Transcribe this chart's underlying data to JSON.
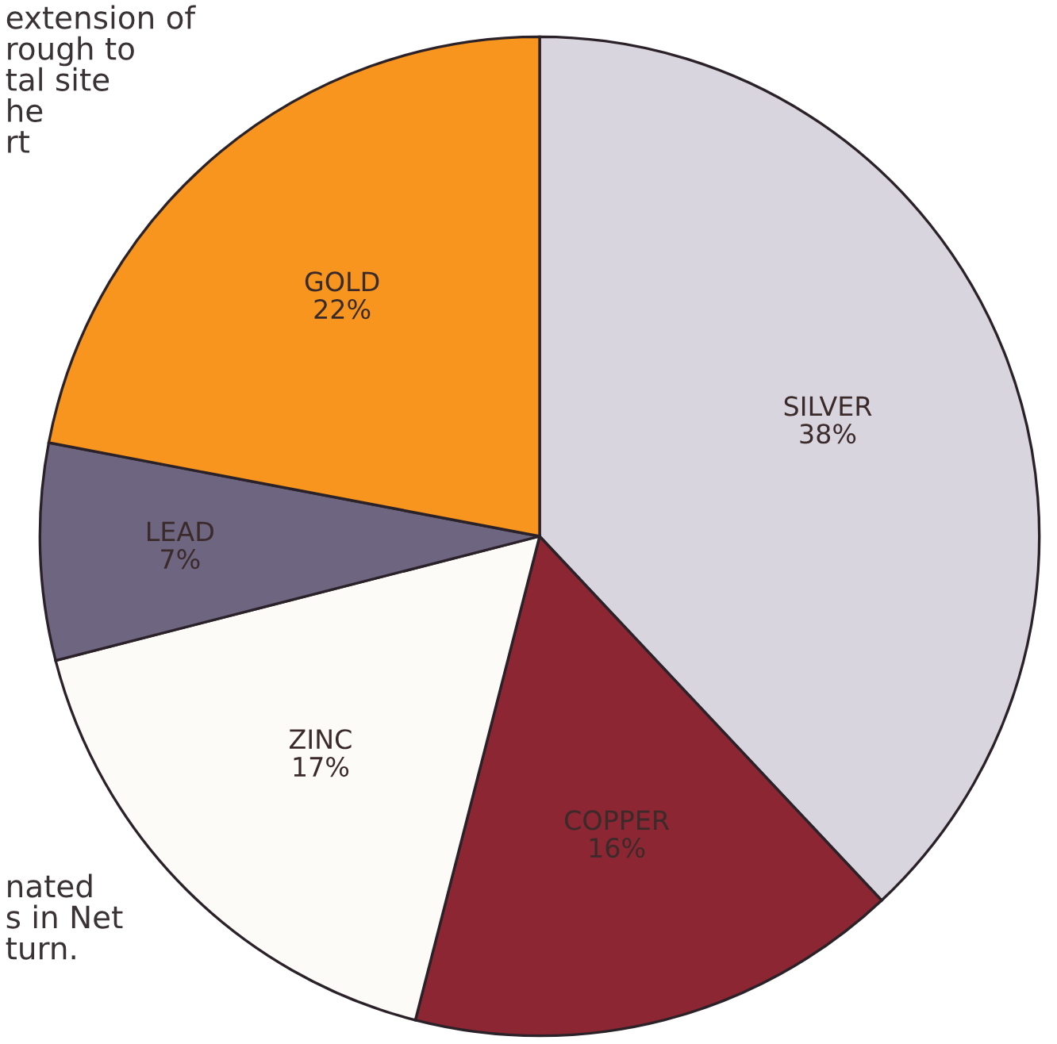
{
  "chart_data": {
    "type": "pie",
    "categories": [
      "SILVER",
      "COPPER",
      "ZINC",
      "LEAD",
      "GOLD"
    ],
    "values": [
      38,
      16,
      17,
      7,
      22
    ],
    "colors": [
      "#d9d5de",
      "#8c2632",
      "#fdfbf7",
      "#6e6580",
      "#f7951f"
    ],
    "value_labels": [
      "38%",
      "16%",
      "17%",
      "7%",
      "22%"
    ],
    "annotations": [
      "extension of\nrough to\ntal site\nhe\nrt",
      "nated\ns in Net\nturn."
    ]
  }
}
